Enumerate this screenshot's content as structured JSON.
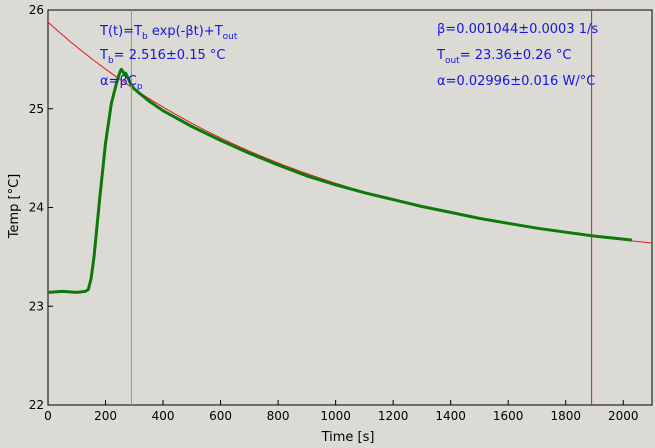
{
  "chart_data": {
    "type": "line",
    "title": "",
    "xlabel": "Time [s]",
    "ylabel": "Temp [°C]",
    "xlim": [
      0,
      2100
    ],
    "ylim": [
      22,
      26
    ],
    "xticks": [
      "0",
      "200",
      "400",
      "600",
      "800",
      "1000",
      "1200",
      "1400",
      "1600",
      "1800",
      "2000"
    ],
    "yticks": [
      "22",
      "23",
      "24",
      "25",
      "26"
    ],
    "grid": false,
    "legend": "none",
    "series": [
      {
        "role": "measured",
        "color": "#0b7a0b",
        "x": [
          0,
          50,
          100,
          130,
          140,
          150,
          160,
          170,
          180,
          200,
          220,
          240,
          250,
          255,
          260,
          265,
          270,
          275,
          280,
          290,
          300,
          350,
          400,
          500,
          600,
          700,
          800,
          900,
          1000,
          1100,
          1200,
          1300,
          1400,
          1500,
          1600,
          1700,
          1800,
          1900,
          2000,
          2030
        ],
        "y": [
          23.14,
          23.15,
          23.14,
          23.15,
          23.17,
          23.28,
          23.5,
          23.8,
          24.1,
          24.65,
          25.05,
          25.28,
          25.37,
          25.4,
          25.38,
          25.35,
          25.36,
          25.33,
          25.3,
          25.24,
          25.2,
          25.08,
          24.98,
          24.82,
          24.68,
          24.55,
          24.43,
          24.32,
          24.23,
          24.15,
          24.08,
          24.01,
          23.95,
          23.89,
          23.84,
          23.79,
          23.75,
          23.71,
          23.68,
          23.67
        ]
      },
      {
        "role": "fit",
        "color": "#e11a1a",
        "function": "T(t)=Tb*exp(-beta*t)+Tout",
        "params": {
          "Tb": 2.516,
          "beta": 0.001044,
          "Tout": 23.36
        },
        "x_range": [
          0,
          2100
        ]
      }
    ],
    "markers": [
      {
        "x": 290,
        "color": "#3ad23a"
      },
      {
        "x": 1890,
        "color": "#e11a1a"
      }
    ],
    "annotations": {
      "formula": {
        "base": "T(t)=T",
        "sub": "b",
        "rest": " exp(-βt)+T",
        "sub2": "out"
      },
      "tb": {
        "base": "T",
        "sub": "b",
        "rest": "= 2.516±0.15 °C"
      },
      "alpha_left": {
        "base": "α=βC",
        "sub": "p"
      },
      "beta": {
        "text": "β=0.001044±0.0003 1/s"
      },
      "tout": {
        "base": "T",
        "sub": "out",
        "rest": "= 23.36±0.26 °C"
      },
      "alpha_right": {
        "text": "α=0.02996±0.016 W/°C"
      }
    }
  }
}
